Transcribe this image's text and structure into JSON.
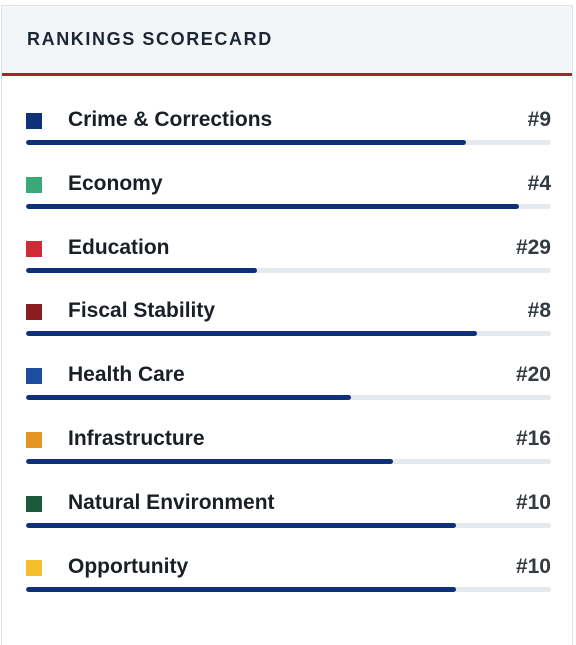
{
  "header": {
    "title": "RANKINGS SCORECARD"
  },
  "categories": [
    {
      "label": "Crime & Corrections",
      "rank": "#9",
      "color": "#0d3277",
      "bar_fraction": 0.838
    },
    {
      "label": "Economy",
      "rank": "#4",
      "color": "#38a878",
      "bar_fraction": 0.939
    },
    {
      "label": "Education",
      "rank": "#29",
      "color": "#cf2a36",
      "bar_fraction": 0.44
    },
    {
      "label": "Fiscal Stability",
      "rank": "#8",
      "color": "#8a1d20",
      "bar_fraction": 0.859
    },
    {
      "label": "Health Care",
      "rank": "#20",
      "color": "#1c4ea0",
      "bar_fraction": 0.619
    },
    {
      "label": "Infrastructure",
      "rank": "#16",
      "color": "#e49423",
      "bar_fraction": 0.699
    },
    {
      "label": "Natural Environment",
      "rank": "#10",
      "color": "#1c5a3c",
      "bar_fraction": 0.819
    },
    {
      "label": "Opportunity",
      "rank": "#10",
      "color": "#f2bf2a",
      "bar_fraction": 0.819
    }
  ]
}
